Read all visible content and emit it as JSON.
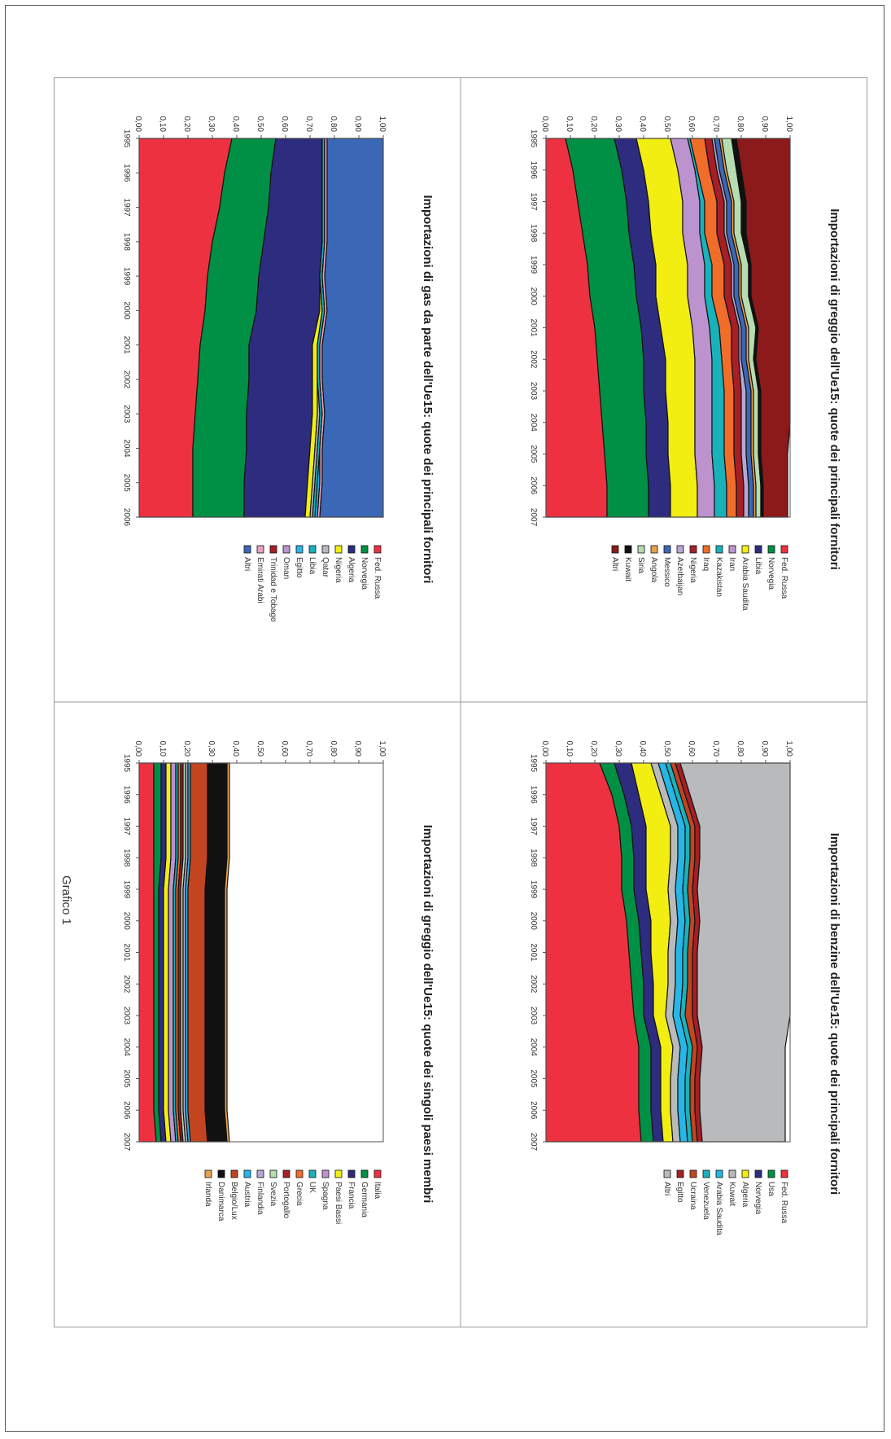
{
  "figure_caption": "Grafico 1",
  "colors": {
    "red": "#ee3140",
    "green": "#009045",
    "navy": "#2e2c7e",
    "yellow": "#f2ee12",
    "lilac": "#bc93cf",
    "teal": "#19b2bb",
    "orange": "#f16d2a",
    "darkred": "#a71f26",
    "blue": "#3b68b6",
    "gray": "#b8babc",
    "cyan": "#26b6e8",
    "lightgreen": "#b6dcb0",
    "brown": "#c2451f",
    "black": "#111111",
    "maroon": "#8c1a1a",
    "lightpurple": "#b7a7d4",
    "tan": "#e8a24a",
    "pink": "#e7a0c0"
  },
  "chart_data": [
    {
      "type": "area",
      "title": "Importazioni di greggio dell'Ue15: quote dei principali fornitori",
      "x": [
        "1995",
        "1996",
        "1997",
        "1998",
        "1999",
        "2000",
        "2001",
        "2002",
        "2003",
        "2004",
        "2005",
        "2006",
        "2007"
      ],
      "ylim": [
        0,
        1
      ],
      "yticks": [
        "0,00",
        "0,10",
        "0,20",
        "0,30",
        "0,40",
        "0,50",
        "0,60",
        "0,70",
        "0,80",
        "0,90",
        "1,00"
      ],
      "legend_position": "right",
      "series": [
        {
          "name": "Fed. Russa",
          "color": "red",
          "values": [
            0.08,
            0.11,
            0.13,
            0.15,
            0.17,
            0.18,
            0.2,
            0.21,
            0.22,
            0.23,
            0.24,
            0.25,
            0.25
          ]
        },
        {
          "name": "Norvegia",
          "color": "green",
          "values": [
            0.2,
            0.2,
            0.2,
            0.19,
            0.19,
            0.19,
            0.19,
            0.19,
            0.18,
            0.18,
            0.17,
            0.17,
            0.17
          ]
        },
        {
          "name": "Libia",
          "color": "navy",
          "values": [
            0.09,
            0.09,
            0.09,
            0.09,
            0.09,
            0.08,
            0.08,
            0.09,
            0.09,
            0.09,
            0.09,
            0.09,
            0.09
          ]
        },
        {
          "name": "Arabia Saudita",
          "color": "yellow",
          "values": [
            0.14,
            0.14,
            0.14,
            0.13,
            0.13,
            0.13,
            0.13,
            0.12,
            0.12,
            0.11,
            0.11,
            0.11,
            0.11
          ]
        },
        {
          "name": "Iran",
          "color": "lilac",
          "values": [
            0.07,
            0.07,
            0.07,
            0.07,
            0.07,
            0.07,
            0.07,
            0.07,
            0.07,
            0.07,
            0.07,
            0.07,
            0.07
          ]
        },
        {
          "name": "Kazakistan",
          "color": "teal",
          "values": [
            0.01,
            0.01,
            0.02,
            0.02,
            0.03,
            0.03,
            0.04,
            0.04,
            0.05,
            0.05,
            0.05,
            0.05,
            0.05
          ]
        },
        {
          "name": "Iraq",
          "color": "orange",
          "values": [
            0.06,
            0.05,
            0.05,
            0.05,
            0.05,
            0.05,
            0.05,
            0.04,
            0.04,
            0.04,
            0.04,
            0.04,
            0.04
          ]
        },
        {
          "name": "Nigeria",
          "color": "darkred",
          "values": [
            0.03,
            0.03,
            0.03,
            0.03,
            0.03,
            0.03,
            0.03,
            0.03,
            0.03,
            0.03,
            0.03,
            0.03,
            0.03
          ]
        },
        {
          "name": "Azerbaijan",
          "color": "lightpurple",
          "values": [
            0.01,
            0.01,
            0.01,
            0.01,
            0.01,
            0.01,
            0.01,
            0.01,
            0.02,
            0.02,
            0.02,
            0.02,
            0.02
          ]
        },
        {
          "name": "Messico",
          "color": "blue",
          "values": [
            0.02,
            0.02,
            0.02,
            0.02,
            0.02,
            0.02,
            0.02,
            0.02,
            0.02,
            0.02,
            0.02,
            0.02,
            0.02
          ]
        },
        {
          "name": "Angola",
          "color": "tan",
          "values": [
            0.01,
            0.01,
            0.01,
            0.01,
            0.01,
            0.01,
            0.01,
            0.01,
            0.01,
            0.01,
            0.01,
            0.01,
            0.01
          ]
        },
        {
          "name": "Siria",
          "color": "lightgreen",
          "values": [
            0.04,
            0.04,
            0.03,
            0.03,
            0.03,
            0.03,
            0.03,
            0.02,
            0.02,
            0.02,
            0.02,
            0.02,
            0.02
          ]
        },
        {
          "name": "Kuwait",
          "color": "black",
          "values": [
            0.02,
            0.02,
            0.02,
            0.02,
            0.01,
            0.01,
            0.01,
            0.01,
            0.01,
            0.01,
            0.01,
            0.01,
            0.01
          ]
        },
        {
          "name": "Altri",
          "color": "maroon",
          "values": [
            0.22,
            0.2,
            0.18,
            0.18,
            0.16,
            0.16,
            0.14,
            0.14,
            0.12,
            0.12,
            0.11,
            0.1,
            0.1
          ]
        }
      ]
    },
    {
      "type": "area",
      "title": "Importazioni di benzine dell'Ue15: quote dei principali fornitori",
      "x": [
        "1995",
        "1996",
        "1997",
        "1998",
        "1999",
        "2000",
        "2001",
        "2002",
        "2003",
        "2004",
        "2005",
        "2006",
        "2007"
      ],
      "ylim": [
        0,
        1
      ],
      "yticks": [
        "0,00",
        "0,10",
        "0,20",
        "0,30",
        "0,40",
        "0,50",
        "0,60",
        "0,70",
        "0,80",
        "0,90",
        "1,00"
      ],
      "legend_position": "right",
      "series": [
        {
          "name": "Fed. Russa",
          "color": "red",
          "values": [
            0.22,
            0.27,
            0.3,
            0.31,
            0.31,
            0.33,
            0.34,
            0.35,
            0.36,
            0.38,
            0.38,
            0.38,
            0.39
          ]
        },
        {
          "name": "Usa",
          "color": "green",
          "values": [
            0.06,
            0.05,
            0.05,
            0.05,
            0.05,
            0.05,
            0.05,
            0.05,
            0.04,
            0.05,
            0.05,
            0.05,
            0.05
          ]
        },
        {
          "name": "Norvegia",
          "color": "navy",
          "values": [
            0.07,
            0.06,
            0.06,
            0.05,
            0.05,
            0.05,
            0.04,
            0.04,
            0.04,
            0.04,
            0.04,
            0.04,
            0.04
          ]
        },
        {
          "name": "Algeria",
          "color": "yellow",
          "values": [
            0.08,
            0.09,
            0.1,
            0.1,
            0.09,
            0.08,
            0.07,
            0.06,
            0.05,
            0.05,
            0.04,
            0.04,
            0.04
          ]
        },
        {
          "name": "Kuwait",
          "color": "gray",
          "values": [
            0.03,
            0.03,
            0.03,
            0.03,
            0.03,
            0.03,
            0.03,
            0.03,
            0.03,
            0.03,
            0.03,
            0.03,
            0.03
          ]
        },
        {
          "name": "Arabia Saudita",
          "color": "cyan",
          "values": [
            0.03,
            0.03,
            0.03,
            0.03,
            0.03,
            0.03,
            0.03,
            0.03,
            0.03,
            0.03,
            0.03,
            0.03,
            0.03
          ]
        },
        {
          "name": "Venezuela",
          "color": "teal",
          "values": [
            0.02,
            0.02,
            0.02,
            0.02,
            0.02,
            0.02,
            0.02,
            0.02,
            0.02,
            0.02,
            0.02,
            0.02,
            0.02
          ]
        },
        {
          "name": "Ucraina",
          "color": "brown",
          "values": [
            0.02,
            0.02,
            0.02,
            0.02,
            0.02,
            0.02,
            0.02,
            0.02,
            0.03,
            0.02,
            0.02,
            0.02,
            0.02
          ]
        },
        {
          "name": "Egitto",
          "color": "darkred",
          "values": [
            0.02,
            0.02,
            0.02,
            0.02,
            0.02,
            0.02,
            0.02,
            0.02,
            0.02,
            0.02,
            0.02,
            0.02,
            0.02
          ]
        },
        {
          "name": "Altri",
          "color": "gray",
          "values": [
            0.45,
            0.41,
            0.37,
            0.37,
            0.38,
            0.37,
            0.38,
            0.38,
            0.38,
            0.34,
            0.35,
            0.35,
            0.34
          ]
        }
      ]
    },
    {
      "type": "area",
      "title": "Importazioni di gas da parte dell'Ue15: quote dei principali fornitori",
      "x": [
        "1995",
        "1996",
        "1997",
        "1998",
        "1999",
        "2000",
        "2001",
        "2002",
        "2003",
        "2004",
        "2005",
        "2006"
      ],
      "ylim": [
        0,
        1
      ],
      "yticks": [
        "0,00",
        "0,10",
        "0,20",
        "0,30",
        "0,40",
        "0,50",
        "0,60",
        "0,70",
        "0,80",
        "0,90",
        "1,00"
      ],
      "legend_position": "right",
      "series": [
        {
          "name": "Fed. Russa",
          "color": "red",
          "values": [
            0.38,
            0.35,
            0.33,
            0.3,
            0.28,
            0.27,
            0.25,
            0.24,
            0.23,
            0.22,
            0.22,
            0.22
          ]
        },
        {
          "name": "Norvegia",
          "color": "green",
          "values": [
            0.18,
            0.19,
            0.2,
            0.21,
            0.21,
            0.21,
            0.2,
            0.21,
            0.21,
            0.22,
            0.21,
            0.21
          ]
        },
        {
          "name": "Algeria",
          "color": "navy",
          "values": [
            0.19,
            0.21,
            0.22,
            0.24,
            0.25,
            0.26,
            0.26,
            0.26,
            0.27,
            0.26,
            0.26,
            0.25
          ]
        },
        {
          "name": "Nigeria",
          "color": "yellow",
          "values": [
            0.0,
            0.0,
            0.0,
            0.0,
            0.0,
            0.01,
            0.02,
            0.02,
            0.02,
            0.02,
            0.02,
            0.02
          ]
        },
        {
          "name": "Qatar",
          "color": "gray",
          "values": [
            0.0,
            0.0,
            0.0,
            0.0,
            0.0,
            0.0,
            0.0,
            0.0,
            0.01,
            0.01,
            0.01,
            0.01
          ]
        },
        {
          "name": "Libia",
          "color": "teal",
          "values": [
            0.01,
            0.01,
            0.01,
            0.01,
            0.01,
            0.01,
            0.01,
            0.01,
            0.01,
            0.01,
            0.01,
            0.01
          ]
        },
        {
          "name": "Egitto",
          "color": "cyan",
          "values": [
            0.0,
            0.0,
            0.0,
            0.0,
            0.0,
            0.0,
            0.0,
            0.0,
            0.0,
            0.0,
            0.01,
            0.01
          ]
        },
        {
          "name": "Oman",
          "color": "lilac",
          "values": [
            0.0,
            0.0,
            0.0,
            0.0,
            0.0,
            0.0,
            0.0,
            0.0,
            0.0,
            0.0,
            0.0,
            0.0
          ]
        },
        {
          "name": "Trinidad e Tobago",
          "color": "darkred",
          "values": [
            0.0,
            0.0,
            0.0,
            0.0,
            0.0,
            0.0,
            0.0,
            0.0,
            0.0,
            0.0,
            0.0,
            0.0
          ]
        },
        {
          "name": "Emirati Arabi",
          "color": "pink",
          "values": [
            0.01,
            0.01,
            0.01,
            0.01,
            0.01,
            0.01,
            0.01,
            0.01,
            0.01,
            0.01,
            0.01,
            0.01
          ]
        },
        {
          "name": "Altri",
          "color": "blue",
          "values": [
            0.23,
            0.23,
            0.23,
            0.23,
            0.24,
            0.23,
            0.25,
            0.25,
            0.24,
            0.25,
            0.25,
            0.26
          ]
        }
      ]
    },
    {
      "type": "area",
      "title": "Importazioni di greggio dell'Ue15: quote dei singoli paesi membri",
      "x": [
        "1995",
        "1996",
        "1997",
        "1998",
        "1999",
        "2000",
        "2001",
        "2002",
        "2003",
        "2004",
        "2005",
        "2006",
        "2007"
      ],
      "ylim": [
        0,
        1
      ],
      "yticks": [
        "0,00",
        "0,10",
        "0,20",
        "0,30",
        "0,40",
        "0,50",
        "0,60",
        "0,70",
        "0,80",
        "0,90",
        "1,00"
      ],
      "legend_position": "right",
      "series": [
        {
          "name": "Italia",
          "color": "red",
          "values": [
            0.06,
            0.06,
            0.06,
            0.06,
            0.06,
            0.06,
            0.06,
            0.06,
            0.06,
            0.06,
            0.06,
            0.06,
            0.07
          ]
        },
        {
          "name": "Germania",
          "color": "green",
          "values": [
            0.03,
            0.03,
            0.03,
            0.03,
            0.02,
            0.02,
            0.02,
            0.02,
            0.02,
            0.02,
            0.02,
            0.02,
            0.02
          ]
        },
        {
          "name": "Francia",
          "color": "navy",
          "values": [
            0.02,
            0.02,
            0.02,
            0.02,
            0.02,
            0.02,
            0.02,
            0.02,
            0.02,
            0.02,
            0.02,
            0.02,
            0.02
          ]
        },
        {
          "name": "Paesi Bassi",
          "color": "yellow",
          "values": [
            0.02,
            0.02,
            0.02,
            0.02,
            0.02,
            0.02,
            0.02,
            0.02,
            0.02,
            0.02,
            0.02,
            0.02,
            0.02
          ]
        },
        {
          "name": "Spagna",
          "color": "lilac",
          "values": [
            0.02,
            0.02,
            0.02,
            0.02,
            0.02,
            0.02,
            0.02,
            0.02,
            0.02,
            0.02,
            0.02,
            0.02,
            0.02
          ]
        },
        {
          "name": "UK",
          "color": "teal",
          "values": [
            0.01,
            0.01,
            0.01,
            0.01,
            0.01,
            0.01,
            0.01,
            0.01,
            0.01,
            0.01,
            0.01,
            0.01,
            0.01
          ]
        },
        {
          "name": "Grecia",
          "color": "orange",
          "values": [
            0.01,
            0.01,
            0.01,
            0.01,
            0.01,
            0.01,
            0.01,
            0.01,
            0.01,
            0.01,
            0.01,
            0.01,
            0.01
          ]
        },
        {
          "name": "Portogallo",
          "color": "darkred",
          "values": [
            0.01,
            0.01,
            0.01,
            0.01,
            0.01,
            0.01,
            0.01,
            0.01,
            0.01,
            0.01,
            0.01,
            0.01,
            0.01
          ]
        },
        {
          "name": "Svezia",
          "color": "lightgreen",
          "values": [
            0.01,
            0.01,
            0.01,
            0.01,
            0.01,
            0.01,
            0.01,
            0.01,
            0.01,
            0.01,
            0.01,
            0.01,
            0.01
          ]
        },
        {
          "name": "Finlandia",
          "color": "lightpurple",
          "values": [
            0.01,
            0.01,
            0.01,
            0.01,
            0.01,
            0.01,
            0.01,
            0.01,
            0.01,
            0.01,
            0.01,
            0.01,
            0.01
          ]
        },
        {
          "name": "Austria",
          "color": "cyan",
          "values": [
            0.01,
            0.01,
            0.01,
            0.01,
            0.01,
            0.01,
            0.01,
            0.01,
            0.01,
            0.01,
            0.01,
            0.01,
            0.01
          ]
        },
        {
          "name": "Belgio/Lux",
          "color": "brown",
          "values": [
            0.07,
            0.07,
            0.07,
            0.07,
            0.07,
            0.07,
            0.07,
            0.07,
            0.07,
            0.07,
            0.07,
            0.07,
            0.07
          ]
        },
        {
          "name": "Danimarca",
          "color": "black",
          "values": [
            0.08,
            0.08,
            0.08,
            0.08,
            0.08,
            0.08,
            0.08,
            0.08,
            0.08,
            0.08,
            0.08,
            0.08,
            0.08
          ]
        },
        {
          "name": "Irlanda",
          "color": "tan",
          "values": [
            0.01,
            0.01,
            0.01,
            0.01,
            0.01,
            0.01,
            0.01,
            0.01,
            0.01,
            0.01,
            0.01,
            0.01,
            0.01
          ]
        }
      ]
    }
  ]
}
